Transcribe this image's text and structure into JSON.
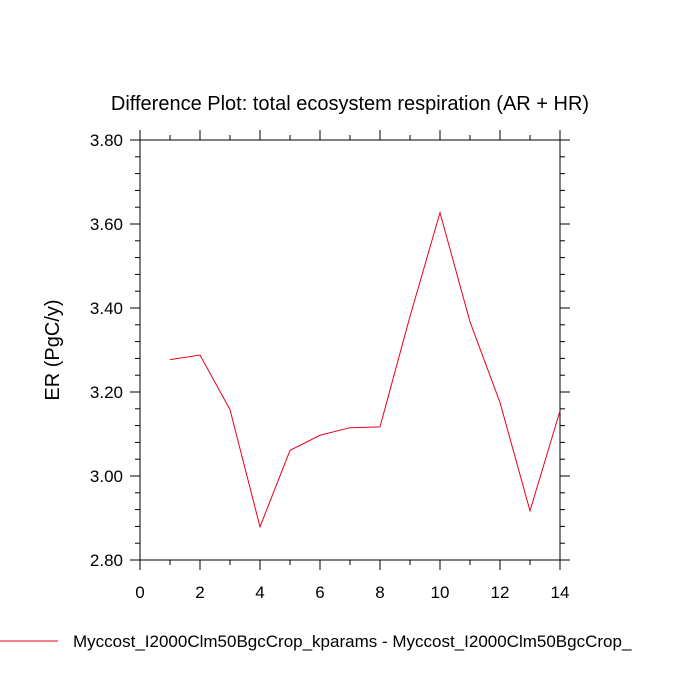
{
  "chart_data": {
    "type": "line",
    "title": "Difference Plot: total ecosystem respiration (AR + HR)",
    "xlabel": "",
    "ylabel": "ER  (PgC/y)",
    "xlim": [
      0,
      14
    ],
    "ylim": [
      2.8,
      3.8
    ],
    "xticks": [
      "0",
      "2",
      "4",
      "6",
      "8",
      "10",
      "12",
      "14"
    ],
    "yticks": [
      "2.80",
      "3.00",
      "3.20",
      "3.40",
      "3.60",
      "3.80"
    ],
    "grid": false,
    "legend_position": "bottom",
    "series": [
      {
        "name": "Myccost_I2000Clm50BgcCrop_kparams - Myccost_I2000Clm50BgcCrop_",
        "color": "#e8001c",
        "x": [
          1,
          2,
          3,
          4,
          5,
          6,
          7,
          8,
          9,
          10,
          11,
          12,
          13,
          14
        ],
        "y": [
          3.277,
          3.288,
          3.158,
          2.879,
          3.061,
          3.097,
          3.115,
          3.117,
          3.38,
          3.627,
          3.367,
          3.175,
          2.917,
          3.155
        ]
      }
    ]
  }
}
